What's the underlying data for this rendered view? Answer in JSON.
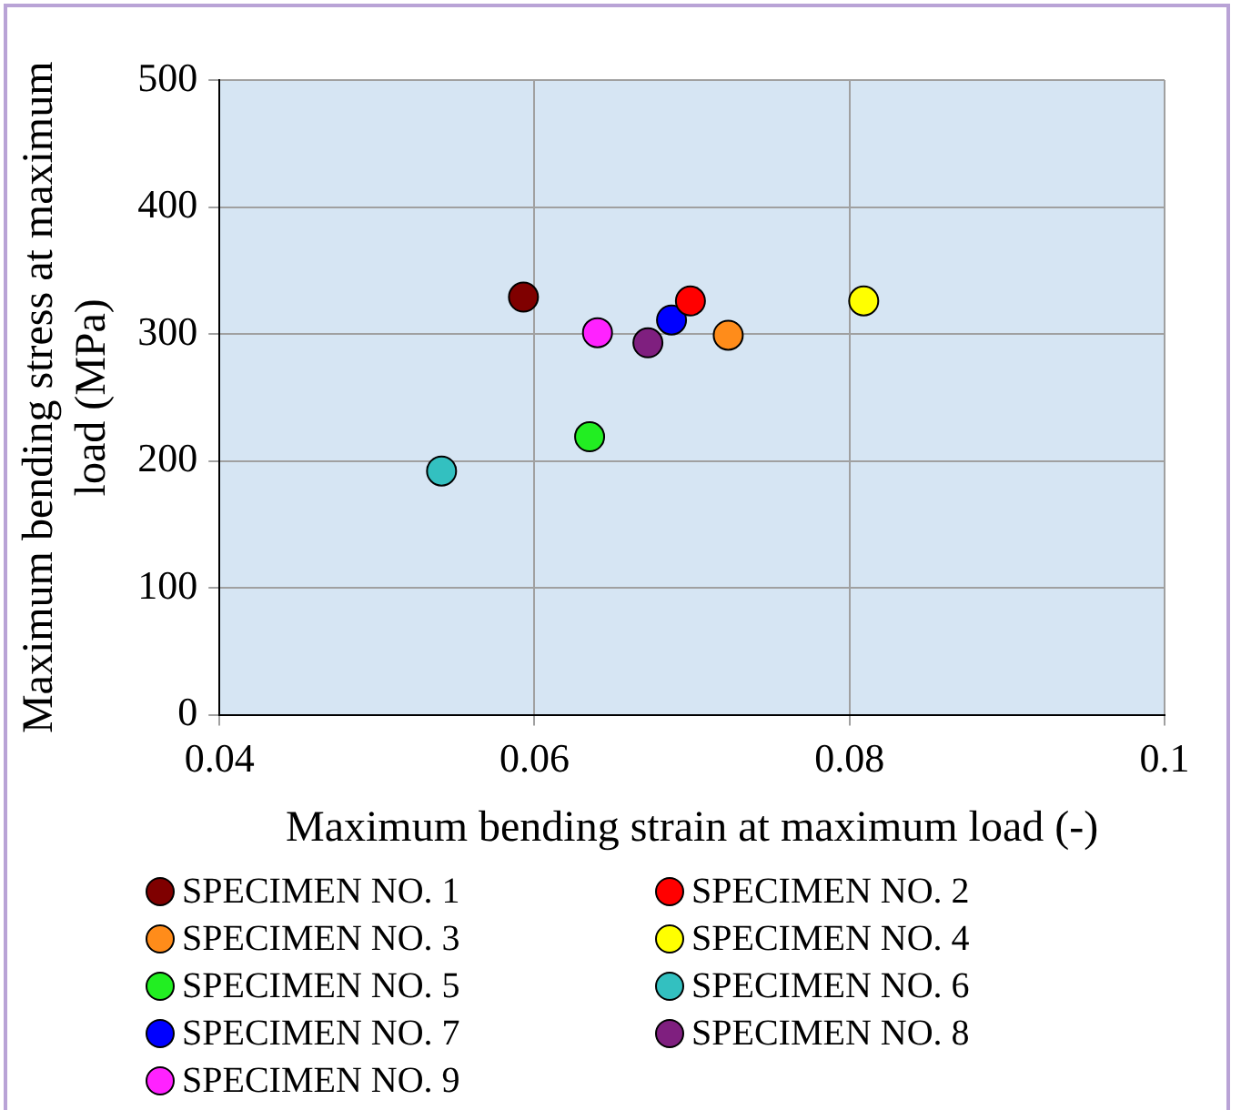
{
  "chart_data": {
    "type": "scatter",
    "xlabel": "Maximum bending strain at maximum load (-)",
    "ylabel": "Maximum bending stress at maximum load (MPa)",
    "xlim": [
      0.04,
      0.1
    ],
    "xticks": [
      0.04,
      0.06,
      0.08,
      0.1
    ],
    "ylim": [
      0,
      500
    ],
    "yticks": [
      0,
      100,
      200,
      300,
      400,
      500
    ],
    "grid": true,
    "legend": "bottom",
    "marker": "circle",
    "series": [
      {
        "name": "SPECIMEN NO. 1",
        "color": "#7f0000",
        "x": [
          0.0593
        ],
        "values": [
          329
        ]
      },
      {
        "name": "SPECIMEN NO. 2",
        "color": "#ff0000",
        "x": [
          0.0699
        ],
        "values": [
          326
        ]
      },
      {
        "name": "SPECIMEN NO. 3",
        "color": "#ff8c1a",
        "x": [
          0.0723
        ],
        "values": [
          299
        ]
      },
      {
        "name": "SPECIMEN NO. 4",
        "color": "#ffff00",
        "x": [
          0.0809
        ],
        "values": [
          326
        ]
      },
      {
        "name": "SPECIMEN NO. 5",
        "color": "#22ee22",
        "x": [
          0.0635
        ],
        "values": [
          219
        ]
      },
      {
        "name": "SPECIMEN NO. 6",
        "color": "#33c0c0",
        "x": [
          0.0541
        ],
        "values": [
          192
        ]
      },
      {
        "name": "SPECIMEN NO. 7",
        "color": "#0000ff",
        "x": [
          0.0687
        ],
        "values": [
          311
        ]
      },
      {
        "name": "SPECIMEN NO. 8",
        "color": "#7f1f7f",
        "x": [
          0.0672
        ],
        "values": [
          293
        ]
      },
      {
        "name": "SPECIMEN NO. 9",
        "color": "#ff22ff",
        "x": [
          0.064
        ],
        "values": [
          301
        ]
      }
    ]
  }
}
